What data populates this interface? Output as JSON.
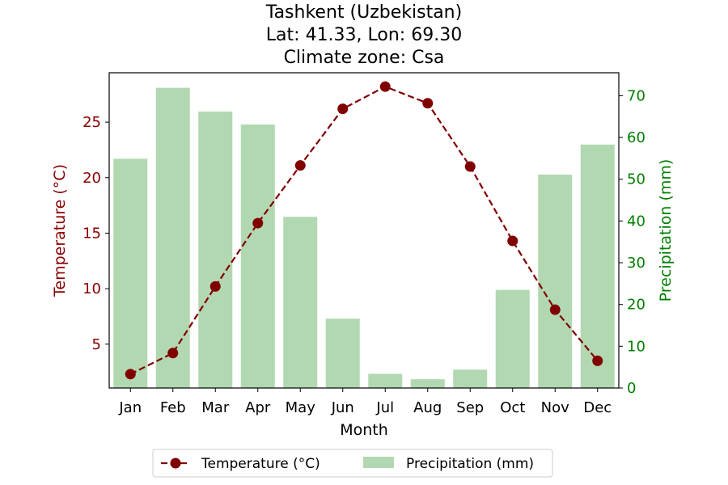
{
  "chart_data": {
    "type": "bar",
    "title_lines": [
      "Tashkent (Uzbekistan)",
      "Lat: 41.33, Lon: 69.30",
      "Climate zone: Csa"
    ],
    "xlabel": "Month",
    "categories": [
      "Jan",
      "Feb",
      "Mar",
      "Apr",
      "May",
      "Jun",
      "Jul",
      "Aug",
      "Sep",
      "Oct",
      "Nov",
      "Dec"
    ],
    "series": [
      {
        "name": "Temperature (°C)",
        "type": "line",
        "axis": "left",
        "color": "#800000",
        "line_style": "dashed",
        "marker": "circle",
        "values": [
          2.3,
          4.2,
          10.2,
          15.9,
          21.1,
          26.2,
          28.2,
          26.7,
          21.0,
          14.3,
          8.1,
          3.5
        ]
      },
      {
        "name": "Precipitation (mm)",
        "type": "bar",
        "axis": "right",
        "color": "#b2d8b2",
        "values": [
          54.9,
          71.9,
          66.2,
          63.1,
          41.0,
          16.6,
          3.4,
          2.1,
          4.4,
          23.5,
          51.1,
          58.3
        ]
      }
    ],
    "y_left": {
      "label": "Temperature (°C)",
      "color": "#8b0000",
      "range": [
        1.05,
        29.45
      ],
      "ticks": [
        5,
        10,
        15,
        20,
        25
      ]
    },
    "y_right": {
      "label": "Precipitation (mm)",
      "color": "#008000",
      "range": [
        0,
        75.5
      ],
      "ticks": [
        0,
        10,
        20,
        30,
        40,
        50,
        60,
        70
      ]
    },
    "grid": false,
    "legend_position": "bottom-center"
  }
}
